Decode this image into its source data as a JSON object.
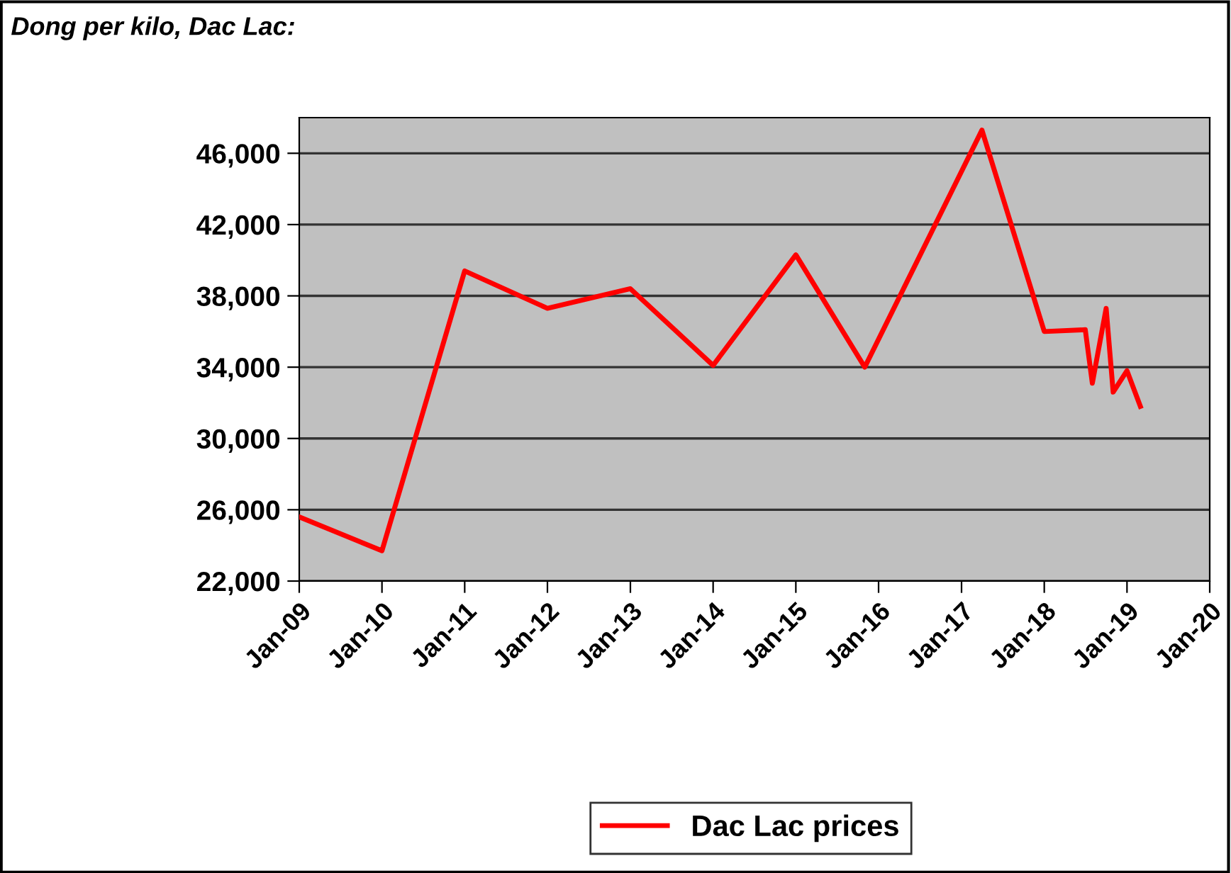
{
  "chart_data": {
    "type": "line",
    "title": "Dong per kilo, Dac Lac:",
    "x": [
      "2009-01",
      "2010-01",
      "2011-01",
      "2012-01",
      "2013-01",
      "2014-01",
      "2015-01",
      "2015-11",
      "2017-04",
      "2018-01",
      "2018-07",
      "2018-08",
      "2018-10",
      "2018-11",
      "2019-01",
      "2019-03"
    ],
    "series": [
      {
        "name": "Dac Lac prices",
        "color": "#ff0000",
        "values": [
          25600,
          23700,
          39400,
          37300,
          38400,
          34100,
          40300,
          34000,
          47300,
          36000,
          36100,
          33100,
          37300,
          32600,
          33800,
          31800
        ]
      }
    ],
    "xlim": [
      "2009-01",
      "2020-01"
    ],
    "xticks": [
      {
        "value": "2009-01",
        "label": "Jan-09"
      },
      {
        "value": "2010-01",
        "label": "Jan-10"
      },
      {
        "value": "2011-01",
        "label": "Jan-11"
      },
      {
        "value": "2012-01",
        "label": "Jan-12"
      },
      {
        "value": "2013-01",
        "label": "Jan-13"
      },
      {
        "value": "2014-01",
        "label": "Jan-14"
      },
      {
        "value": "2015-01",
        "label": "Jan-15"
      },
      {
        "value": "2016-01",
        "label": "Jan-16"
      },
      {
        "value": "2017-01",
        "label": "Jan-17"
      },
      {
        "value": "2018-01",
        "label": "Jan-18"
      },
      {
        "value": "2019-01",
        "label": "Jan-19"
      },
      {
        "value": "2020-01",
        "label": "Jan-20"
      }
    ],
    "ylim": [
      22000,
      48000
    ],
    "yticks": [
      {
        "value": 22000,
        "label": "22,000"
      },
      {
        "value": 26000,
        "label": "26,000"
      },
      {
        "value": 30000,
        "label": "30,000"
      },
      {
        "value": 34000,
        "label": "34,000"
      },
      {
        "value": 38000,
        "label": "38,000"
      },
      {
        "value": 42000,
        "label": "42,000"
      },
      {
        "value": 46000,
        "label": "46,000"
      }
    ],
    "grid": "y",
    "legend": "bottom",
    "marker": "none",
    "line_style": "solid"
  }
}
